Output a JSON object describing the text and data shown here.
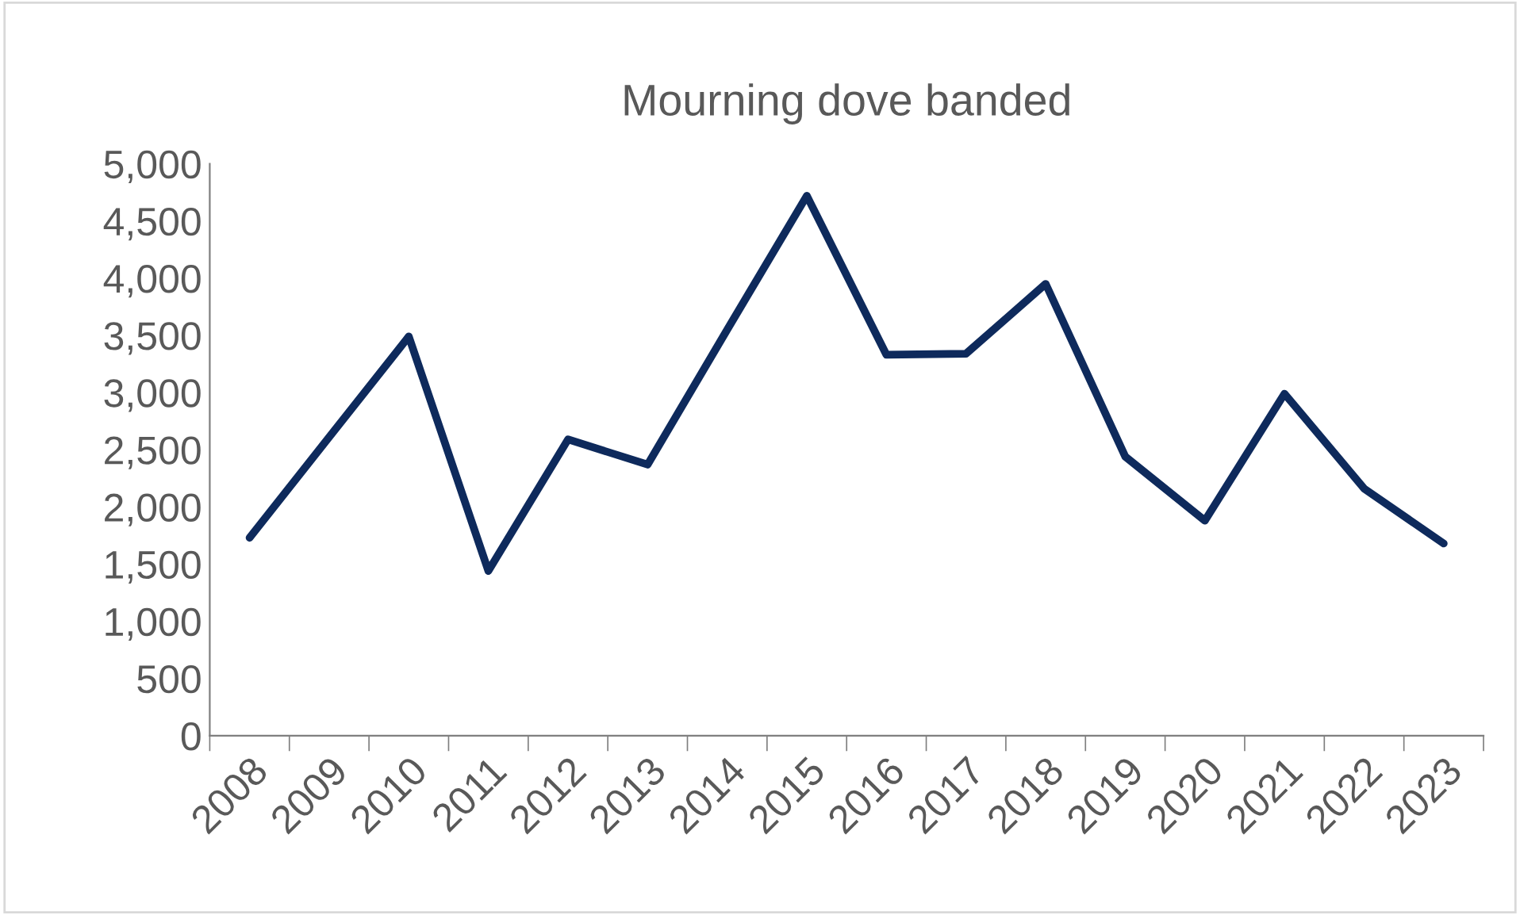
{
  "chart_data": {
    "type": "line",
    "title": "Mourning dove banded",
    "categories": [
      "2008",
      "2009",
      "2010",
      "2011",
      "2012",
      "2013",
      "2014",
      "2015",
      "2016",
      "2017",
      "2018",
      "2019",
      "2020",
      "2021",
      "2022",
      "2023"
    ],
    "series": [
      {
        "color": "#0e2a5c",
        "values": [
          1730,
          2610,
          3490,
          1440,
          2590,
          2370,
          3550,
          4720,
          3330,
          3340,
          3950,
          2440,
          1880,
          2990,
          2160,
          1680
        ]
      }
    ],
    "ylim": [
      0,
      5000
    ],
    "yticks": [
      {
        "value": 0,
        "label": "0"
      },
      {
        "value": 500,
        "label": "500"
      },
      {
        "value": 1000,
        "label": "1,000"
      },
      {
        "value": 1500,
        "label": "1,500"
      },
      {
        "value": 2000,
        "label": "2,000"
      },
      {
        "value": 2500,
        "label": "2,500"
      },
      {
        "value": 3000,
        "label": "3,000"
      },
      {
        "value": 3500,
        "label": "3,500"
      },
      {
        "value": 4000,
        "label": "4,000"
      },
      {
        "value": 4500,
        "label": "4,500"
      },
      {
        "value": 5000,
        "label": "5,000"
      }
    ],
    "grid": false,
    "legend": false,
    "marker": "none",
    "line_style": "solid"
  }
}
